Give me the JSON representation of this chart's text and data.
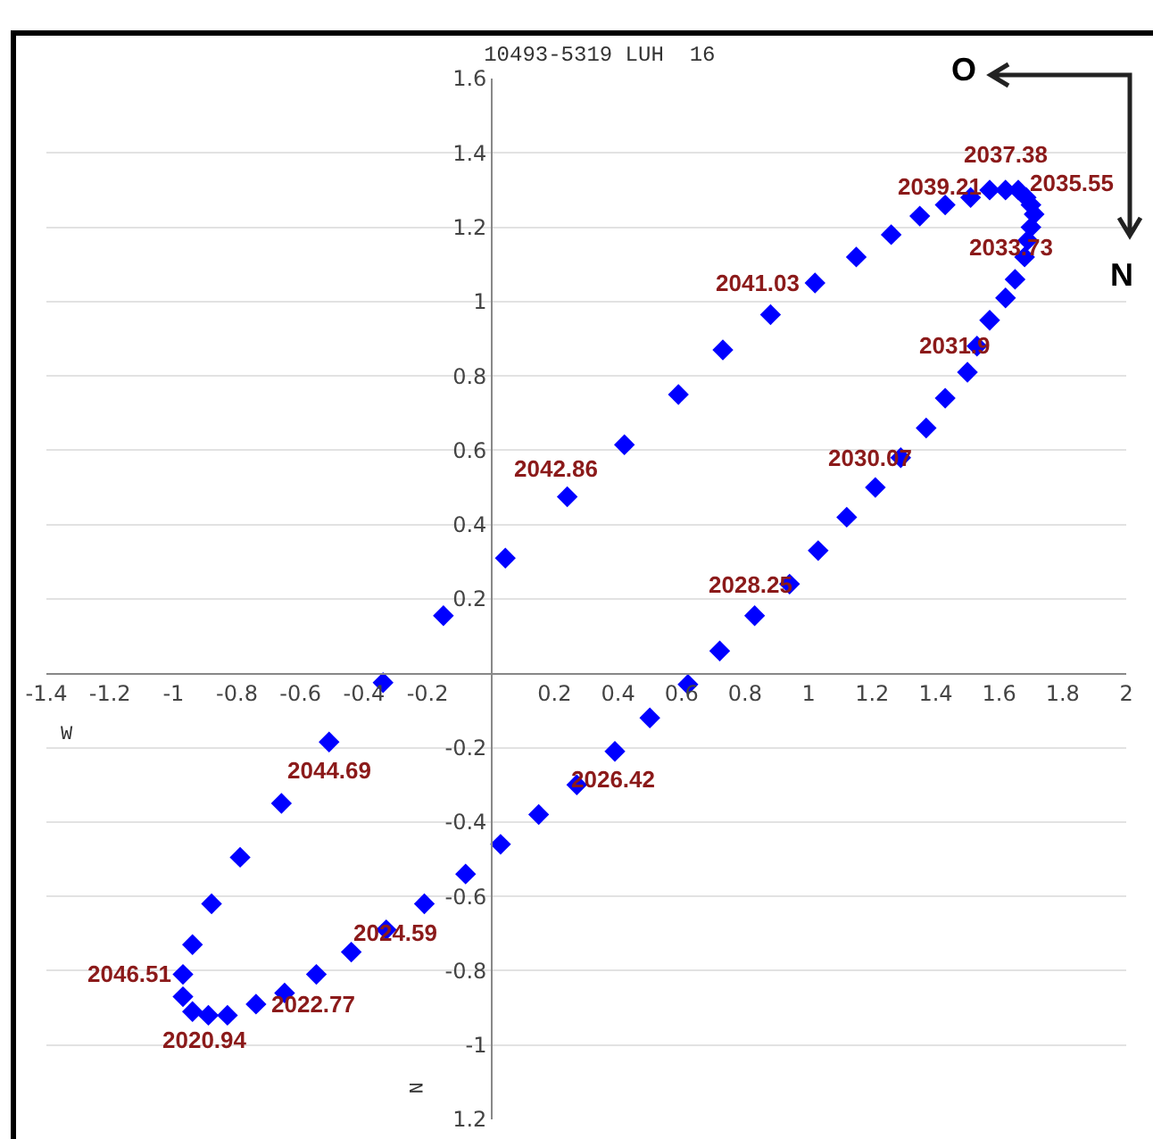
{
  "chart_data": {
    "type": "scatter",
    "title": "10493-5319 LUH  16",
    "xlabel": "W",
    "ylabel": "N",
    "x": [
      -0.97,
      -0.94,
      -0.89,
      -0.83,
      -0.74,
      -0.65,
      -0.55,
      -0.44,
      -0.33,
      -0.21,
      -0.08,
      0.03,
      0.15,
      0.27,
      0.39,
      0.5,
      0.62,
      0.72,
      0.83,
      0.94,
      1.03,
      1.12,
      1.21,
      1.29,
      1.37,
      1.43,
      1.5,
      1.53,
      1.57,
      1.62,
      1.65,
      1.68,
      1.69,
      1.7,
      1.71,
      1.7,
      1.685,
      1.66,
      1.62,
      1.57,
      1.51,
      1.43,
      1.35,
      1.26,
      1.15,
      1.02,
      0.88,
      0.73,
      0.59,
      0.42,
      0.24,
      0.045,
      -0.15,
      -0.34,
      -0.51,
      -0.66,
      -0.79,
      -0.88,
      -0.94,
      -0.97
    ],
    "values": [
      -0.87,
      -0.91,
      -0.92,
      -0.92,
      -0.89,
      -0.86,
      -0.81,
      -0.75,
      -0.69,
      -0.62,
      -0.54,
      -0.46,
      -0.38,
      -0.3,
      -0.21,
      -0.12,
      -0.03,
      0.06,
      0.155,
      0.24,
      0.33,
      0.42,
      0.5,
      0.58,
      0.66,
      0.74,
      0.81,
      0.88,
      0.95,
      1.01,
      1.06,
      1.12,
      1.165,
      1.2,
      1.235,
      1.26,
      1.28,
      1.3,
      1.3,
      1.3,
      1.28,
      1.26,
      1.23,
      1.18,
      1.12,
      1.05,
      0.965,
      0.87,
      0.75,
      0.615,
      0.475,
      0.31,
      0.155,
      -0.025,
      -0.185,
      -0.35,
      -0.495,
      -0.62,
      -0.73,
      -0.81
    ],
    "color": "#0000ff",
    "marker": "diamond",
    "grid": "y",
    "xlim": [
      -1.4,
      2.0
    ],
    "xticks": [
      {
        "value": -1.4,
        "label": "-1.4"
      },
      -1.2,
      -1.0,
      -0.8,
      -0.6,
      -0.4,
      -0.2,
      0.2,
      0.4,
      0.6,
      0.8,
      1.0,
      1.2,
      1.4,
      1.6,
      1.8,
      2.0
    ],
    "ylim": [
      -1.2,
      1.6
    ],
    "yticks": [
      {
        "value": -1.2,
        "label": "1.2"
      },
      -1.0,
      -0.8,
      -0.6,
      -0.4,
      -0.2,
      0.2,
      0.4,
      0.6,
      0.8,
      1.0,
      1.2,
      1.4,
      1.6
    ],
    "annotations": [
      {
        "text": "2020.94",
        "x": -0.89,
        "y": -0.92
      },
      {
        "text": "2022.77",
        "x": -0.74,
        "y": -0.89
      },
      {
        "text": "2024.59",
        "x": -0.21,
        "y": -0.62
      },
      {
        "text": "2026.42",
        "x": 0.27,
        "y": -0.3
      },
      {
        "text": "2028.25",
        "x": 0.94,
        "y": 0.24
      },
      {
        "text": "2030.07",
        "x": 1.29,
        "y": 0.58
      },
      {
        "text": "2031.9",
        "x": 1.53,
        "y": 0.88
      },
      {
        "text": "2033.73",
        "x": 1.68,
        "y": 1.12
      },
      {
        "text": "2035.55",
        "x": 1.66,
        "y": 1.3
      },
      {
        "text": "2037.38",
        "x": 1.62,
        "y": 1.3
      },
      {
        "text": "2039.21",
        "x": 1.51,
        "y": 1.28
      },
      {
        "text": "2041.03",
        "x": 1.02,
        "y": 1.05
      },
      {
        "text": "2042.86",
        "x": 0.24,
        "y": 0.475
      },
      {
        "text": "2044.69",
        "x": -0.51,
        "y": -0.185
      },
      {
        "text": "2046.51",
        "x": -0.97,
        "y": -0.81
      },
      "O",
      "N"
    ]
  }
}
